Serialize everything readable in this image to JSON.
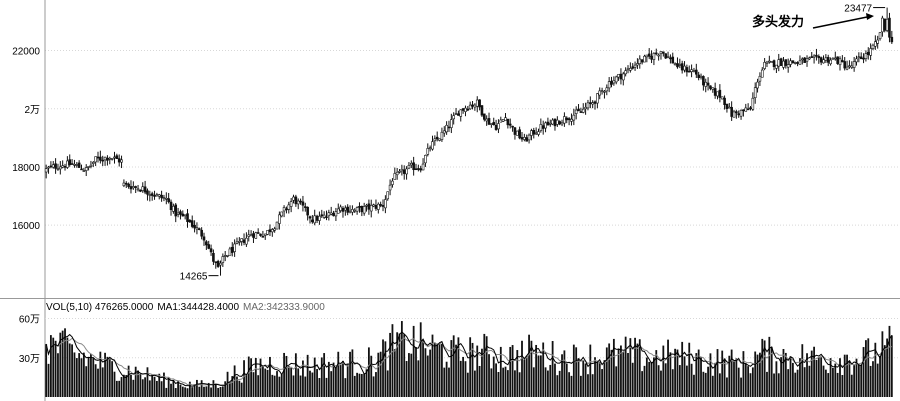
{
  "chart_data": [
    {
      "type": "candlestick",
      "title": "",
      "xlabel": "",
      "ylabel": "",
      "ylim": [
        13600,
        23600
      ],
      "y_ticks": [
        16000,
        18000,
        20000,
        22000
      ],
      "y_tick_labels": [
        "16000",
        "18000",
        "2万",
        "22000"
      ],
      "grid": true,
      "anchors": [
        [
          0,
          17850
        ],
        [
          2,
          17950
        ],
        [
          6,
          18050
        ],
        [
          12,
          18100
        ],
        [
          18,
          17900
        ],
        [
          22,
          18250
        ],
        [
          28,
          18350
        ],
        [
          33,
          18200
        ],
        [
          34,
          17400
        ],
        [
          42,
          17250
        ],
        [
          48,
          17000
        ],
        [
          52,
          16900
        ],
        [
          56,
          16400
        ],
        [
          60,
          16250
        ],
        [
          64,
          15950
        ],
        [
          68,
          15600
        ],
        [
          72,
          14800
        ],
        [
          74,
          14500
        ],
        [
          77,
          14950
        ],
        [
          82,
          15300
        ],
        [
          88,
          15700
        ],
        [
          94,
          15700
        ],
        [
          98,
          16000
        ],
        [
          102,
          16500
        ],
        [
          106,
          16900
        ],
        [
          110,
          16600
        ],
        [
          114,
          16200
        ],
        [
          120,
          16300
        ],
        [
          126,
          16600
        ],
        [
          132,
          16500
        ],
        [
          138,
          16600
        ],
        [
          144,
          16700
        ],
        [
          148,
          17600
        ],
        [
          152,
          17800
        ],
        [
          156,
          18000
        ],
        [
          160,
          18000
        ],
        [
          164,
          18700
        ],
        [
          170,
          19200
        ],
        [
          176,
          19900
        ],
        [
          180,
          20100
        ],
        [
          184,
          20200
        ],
        [
          188,
          19600
        ],
        [
          192,
          19400
        ],
        [
          196,
          19700
        ],
        [
          200,
          19200
        ],
        [
          204,
          18900
        ],
        [
          208,
          19200
        ],
        [
          212,
          19400
        ],
        [
          216,
          19500
        ],
        [
          222,
          19700
        ],
        [
          228,
          19900
        ],
        [
          234,
          20300
        ],
        [
          240,
          20900
        ],
        [
          246,
          21200
        ],
        [
          252,
          21600
        ],
        [
          258,
          21800
        ],
        [
          262,
          22000
        ],
        [
          266,
          21700
        ],
        [
          270,
          21400
        ],
        [
          276,
          21300
        ],
        [
          282,
          20700
        ],
        [
          288,
          20400
        ],
        [
          292,
          19800
        ],
        [
          296,
          19900
        ],
        [
          300,
          20000
        ],
        [
          303,
          21000
        ],
        [
          306,
          21500
        ],
        [
          312,
          21600
        ],
        [
          320,
          21600
        ],
        [
          328,
          21700
        ],
        [
          336,
          21700
        ],
        [
          342,
          21400
        ],
        [
          346,
          21700
        ],
        [
          350,
          21900
        ],
        [
          354,
          22300
        ],
        [
          356,
          23000
        ],
        [
          358,
          22400
        ]
      ],
      "count": 360,
      "high_label": "23477",
      "high_value": 23477,
      "high_index": 357,
      "low_label": "14265",
      "low_value": 14265,
      "low_index": 74,
      "annotation": "多头发力"
    },
    {
      "type": "bar",
      "title": "",
      "ylim": [
        0,
        650000
      ],
      "y_ticks": [
        300000,
        600000
      ],
      "y_tick_labels": [
        "30万",
        "60万"
      ],
      "legend_items": [
        {
          "text": "VOL(5,10) 476265.0000",
          "tone": "dark"
        },
        {
          "text": "MA1:344428.4000",
          "tone": "dark"
        },
        {
          "text": "MA2:342333.9000",
          "tone": "gray"
        }
      ],
      "anchors": [
        [
          0,
          420000
        ],
        [
          6,
          380000
        ],
        [
          12,
          330000
        ],
        [
          20,
          280000
        ],
        [
          28,
          230000
        ],
        [
          36,
          200000
        ],
        [
          44,
          160000
        ],
        [
          52,
          120000
        ],
        [
          60,
          95000
        ],
        [
          68,
          90000
        ],
        [
          74,
          110000
        ],
        [
          80,
          180000
        ],
        [
          90,
          240000
        ],
        [
          100,
          260000
        ],
        [
          110,
          240000
        ],
        [
          120,
          250000
        ],
        [
          130,
          260000
        ],
        [
          140,
          270000
        ],
        [
          146,
          380000
        ],
        [
          152,
          420000
        ],
        [
          158,
          400000
        ],
        [
          166,
          360000
        ],
        [
          176,
          320000
        ],
        [
          186,
          340000
        ],
        [
          196,
          300000
        ],
        [
          206,
          340000
        ],
        [
          216,
          300000
        ],
        [
          226,
          290000
        ],
        [
          236,
          310000
        ],
        [
          246,
          330000
        ],
        [
          256,
          300000
        ],
        [
          266,
          310000
        ],
        [
          276,
          290000
        ],
        [
          286,
          270000
        ],
        [
          296,
          250000
        ],
        [
          304,
          330000
        ],
        [
          310,
          310000
        ],
        [
          320,
          300000
        ],
        [
          330,
          290000
        ],
        [
          338,
          300000
        ],
        [
          346,
          300000
        ],
        [
          352,
          340000
        ],
        [
          358,
          380000
        ]
      ],
      "count": 360
    }
  ]
}
